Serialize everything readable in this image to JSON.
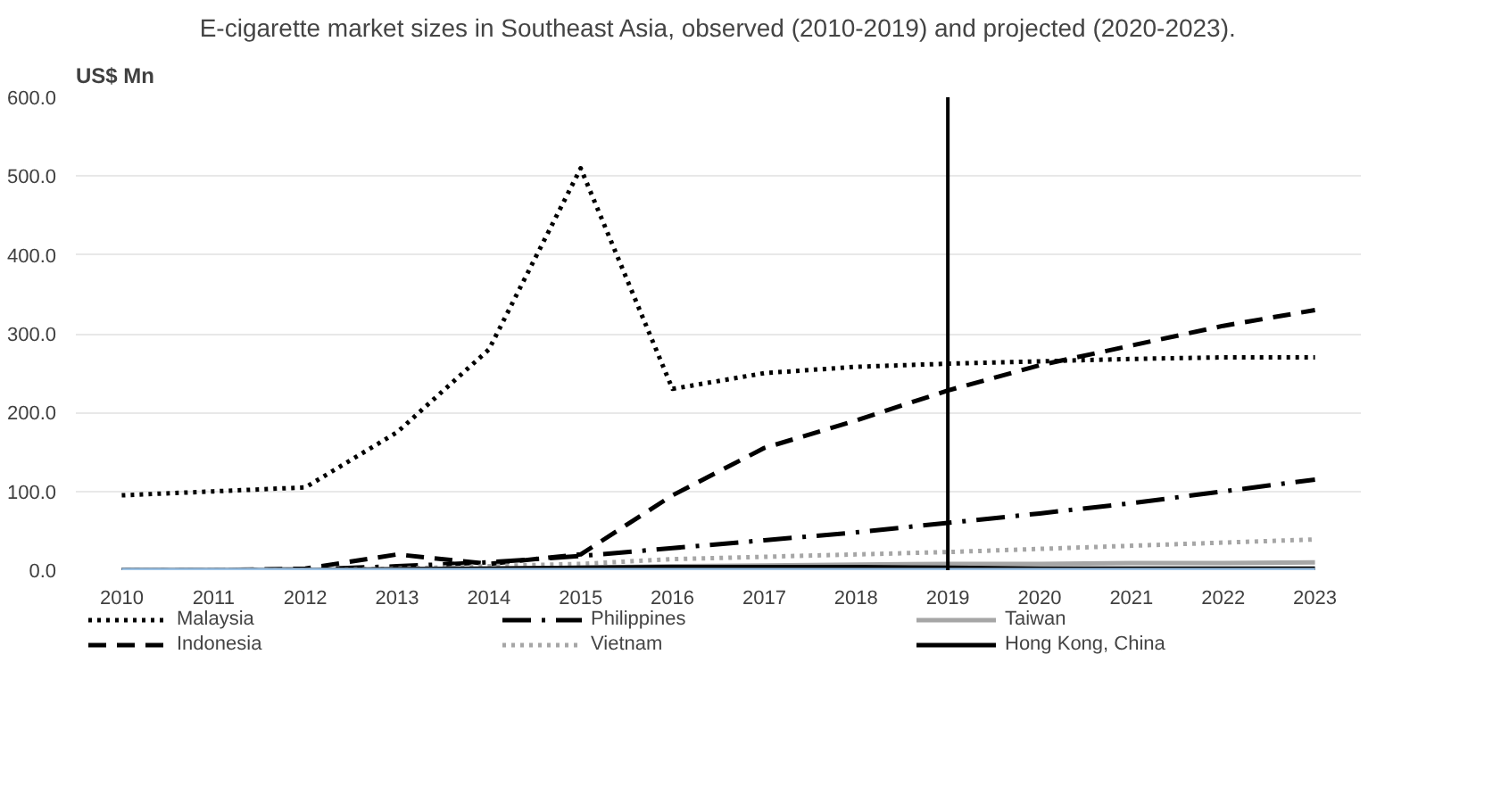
{
  "chart_data": {
    "type": "line",
    "title": "E-cigarette market sizes in Southeast Asia, observed (2010-2019) and projected (2020-2023).",
    "ylabel": "US$ Mn",
    "x": [
      2010,
      2011,
      2012,
      2013,
      2014,
      2015,
      2016,
      2017,
      2018,
      2019,
      2020,
      2021,
      2022,
      2023
    ],
    "xlim": [
      2009.5,
      2023.5
    ],
    "xticks": [
      2010,
      2011,
      2012,
      2013,
      2014,
      2015,
      2016,
      2017,
      2018,
      2019,
      2020,
      2021,
      2022,
      2023
    ],
    "ylim": [
      0,
      600
    ],
    "yticks": [
      {
        "value": 0,
        "label": "0.0"
      },
      {
        "value": 100,
        "label": "100.0"
      },
      {
        "value": 200,
        "label": "200.0"
      },
      {
        "value": 300,
        "label": "300.0"
      },
      {
        "value": 400,
        "label": "400.0"
      },
      {
        "value": 500,
        "label": "500.0"
      },
      {
        "value": 600,
        "label": "600.0"
      }
    ],
    "grid": "y",
    "legend": "bottom",
    "ref_lines": [
      {
        "axis": "x",
        "value": 2019,
        "color": "#000000"
      }
    ],
    "series": [
      {
        "name": "Malaysia",
        "color": "#000000",
        "line_style": "dotted",
        "values": [
          95,
          100,
          105,
          175,
          280,
          510,
          230,
          250,
          258,
          262,
          265,
          268,
          270,
          270
        ]
      },
      {
        "name": "Indonesia",
        "color": "#000000",
        "line_style": "dashed",
        "values": [
          0,
          0,
          2,
          20,
          8,
          20,
          95,
          155,
          190,
          228,
          260,
          285,
          310,
          330
        ]
      },
      {
        "name": "Philippines",
        "color": "#000000",
        "line_style": "dashdot",
        "values": [
          0,
          0,
          1,
          5,
          10,
          18,
          28,
          38,
          48,
          60,
          72,
          85,
          100,
          115
        ]
      },
      {
        "name": "Vietnam",
        "color": "#a6a6a6",
        "line_style": "dotted",
        "values": [
          0,
          0,
          0,
          2,
          5,
          8,
          14,
          17,
          20,
          23,
          27,
          31,
          35,
          39
        ]
      },
      {
        "name": "Taiwan",
        "color": "#a6a6a6",
        "line_style": "solid",
        "values": [
          0,
          0,
          0,
          1,
          2,
          3,
          5,
          6,
          7,
          8,
          8,
          9,
          9,
          10
        ]
      },
      {
        "name": "Hong Kong, China",
        "color": "#000000",
        "line_style": "solid",
        "values": [
          0,
          0,
          0,
          1,
          2,
          3,
          4,
          4,
          4,
          3,
          2,
          2,
          2,
          2
        ]
      },
      {
        "color": "#9dc3e6",
        "line_style": "solid",
        "values": [
          0,
          0,
          0,
          0,
          0,
          0,
          0,
          0,
          0,
          0,
          0,
          0,
          0,
          0
        ]
      }
    ]
  }
}
